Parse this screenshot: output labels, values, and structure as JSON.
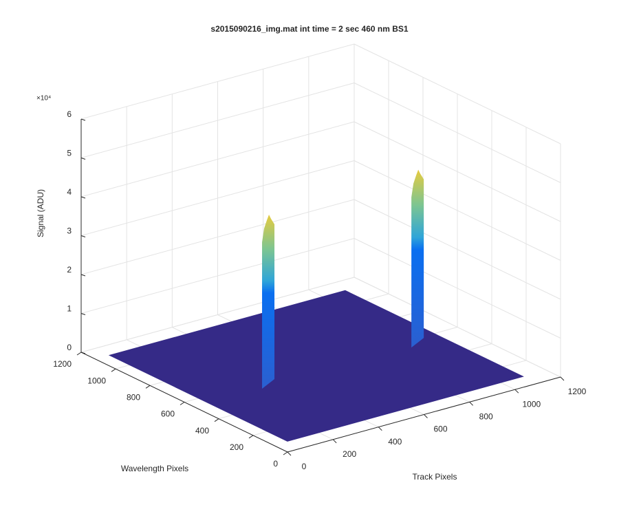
{
  "chart_data": {
    "type": "surface3d",
    "title": "s2015090216_img.mat int time = 2 sec  460 nm BS1",
    "xlabel": "Track Pixels",
    "ylabel": "Wavelength Pixels",
    "zlabel": "Signal (ADU)",
    "zscale_label": "×10⁴",
    "xlim": [
      0,
      1200
    ],
    "ylim": [
      0,
      1200
    ],
    "zlim": [
      0,
      6
    ],
    "xticks": [
      0,
      200,
      400,
      600,
      800,
      1000,
      1200
    ],
    "yticks": [
      0,
      200,
      400,
      600,
      800,
      1000,
      1200
    ],
    "zticks": [
      0,
      1,
      2,
      3,
      4,
      5,
      6
    ],
    "grid": true,
    "surface": {
      "xrange": [
        60,
        1100
      ],
      "yrange": [
        80,
        1120
      ],
      "floor": 0,
      "color": "#352a87"
    },
    "peaks": [
      {
        "x": 353,
        "y": 579,
        "z": 4.3
      },
      {
        "x": 1010,
        "y": 580,
        "z": 4.4
      }
    ]
  }
}
